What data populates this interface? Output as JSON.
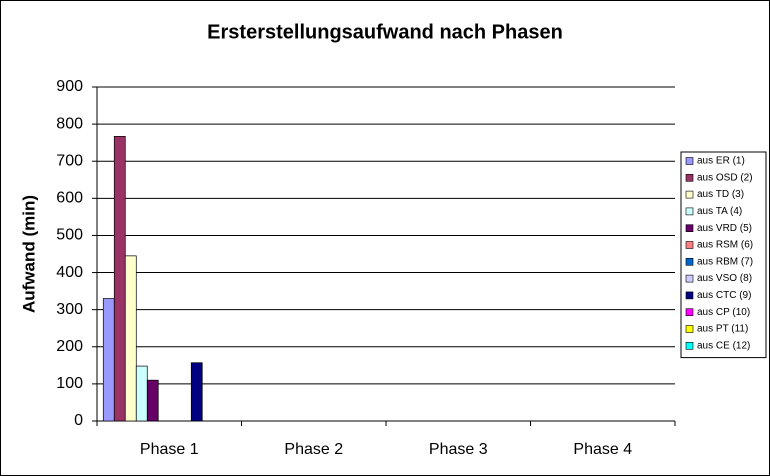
{
  "chart_data": {
    "type": "bar",
    "title": "Ersterstellungsaufwand nach Phasen",
    "y_label": "Aufwand (min)",
    "categories": [
      "Phase 1",
      "Phase 2",
      "Phase 3",
      "Phase 4"
    ],
    "series": [
      {
        "name": "aus ER (1)",
        "color": "#9999ff",
        "values": [
          330,
          null,
          null,
          null
        ]
      },
      {
        "name": "aus OSD (2)",
        "color": "#993366",
        "values": [
          767,
          null,
          null,
          null
        ]
      },
      {
        "name": "aus TD (3)",
        "color": "#ffffcc",
        "values": [
          445,
          null,
          null,
          null
        ]
      },
      {
        "name": "aus TA (4)",
        "color": "#ccffff",
        "values": [
          148,
          null,
          null,
          null
        ]
      },
      {
        "name": "aus VRD (5)",
        "color": "#660066",
        "values": [
          110,
          null,
          null,
          null
        ]
      },
      {
        "name": "aus RSM (6)",
        "color": "#ff8080",
        "values": [
          null,
          null,
          null,
          null
        ]
      },
      {
        "name": "aus RBM (7)",
        "color": "#0066cc",
        "values": [
          null,
          null,
          null,
          null
        ]
      },
      {
        "name": "aus VSO (8)",
        "color": "#ccccff",
        "values": [
          null,
          null,
          null,
          null
        ]
      },
      {
        "name": "aus CTC (9)",
        "color": "#000080",
        "values": [
          157,
          null,
          null,
          null
        ]
      },
      {
        "name": "aus CP (10)",
        "color": "#ff00ff",
        "values": [
          null,
          null,
          null,
          null
        ]
      },
      {
        "name": "aus PT (11)",
        "color": "#ffff00",
        "values": [
          null,
          null,
          null,
          null
        ]
      },
      {
        "name": "aus CE (12)",
        "color": "#00ffff",
        "values": [
          null,
          null,
          null,
          null
        ]
      }
    ],
    "ylim": [
      0,
      900
    ],
    "yticks": [
      0,
      100,
      200,
      300,
      400,
      500,
      600,
      700,
      800,
      900
    ],
    "grid": true,
    "legend": "right"
  }
}
